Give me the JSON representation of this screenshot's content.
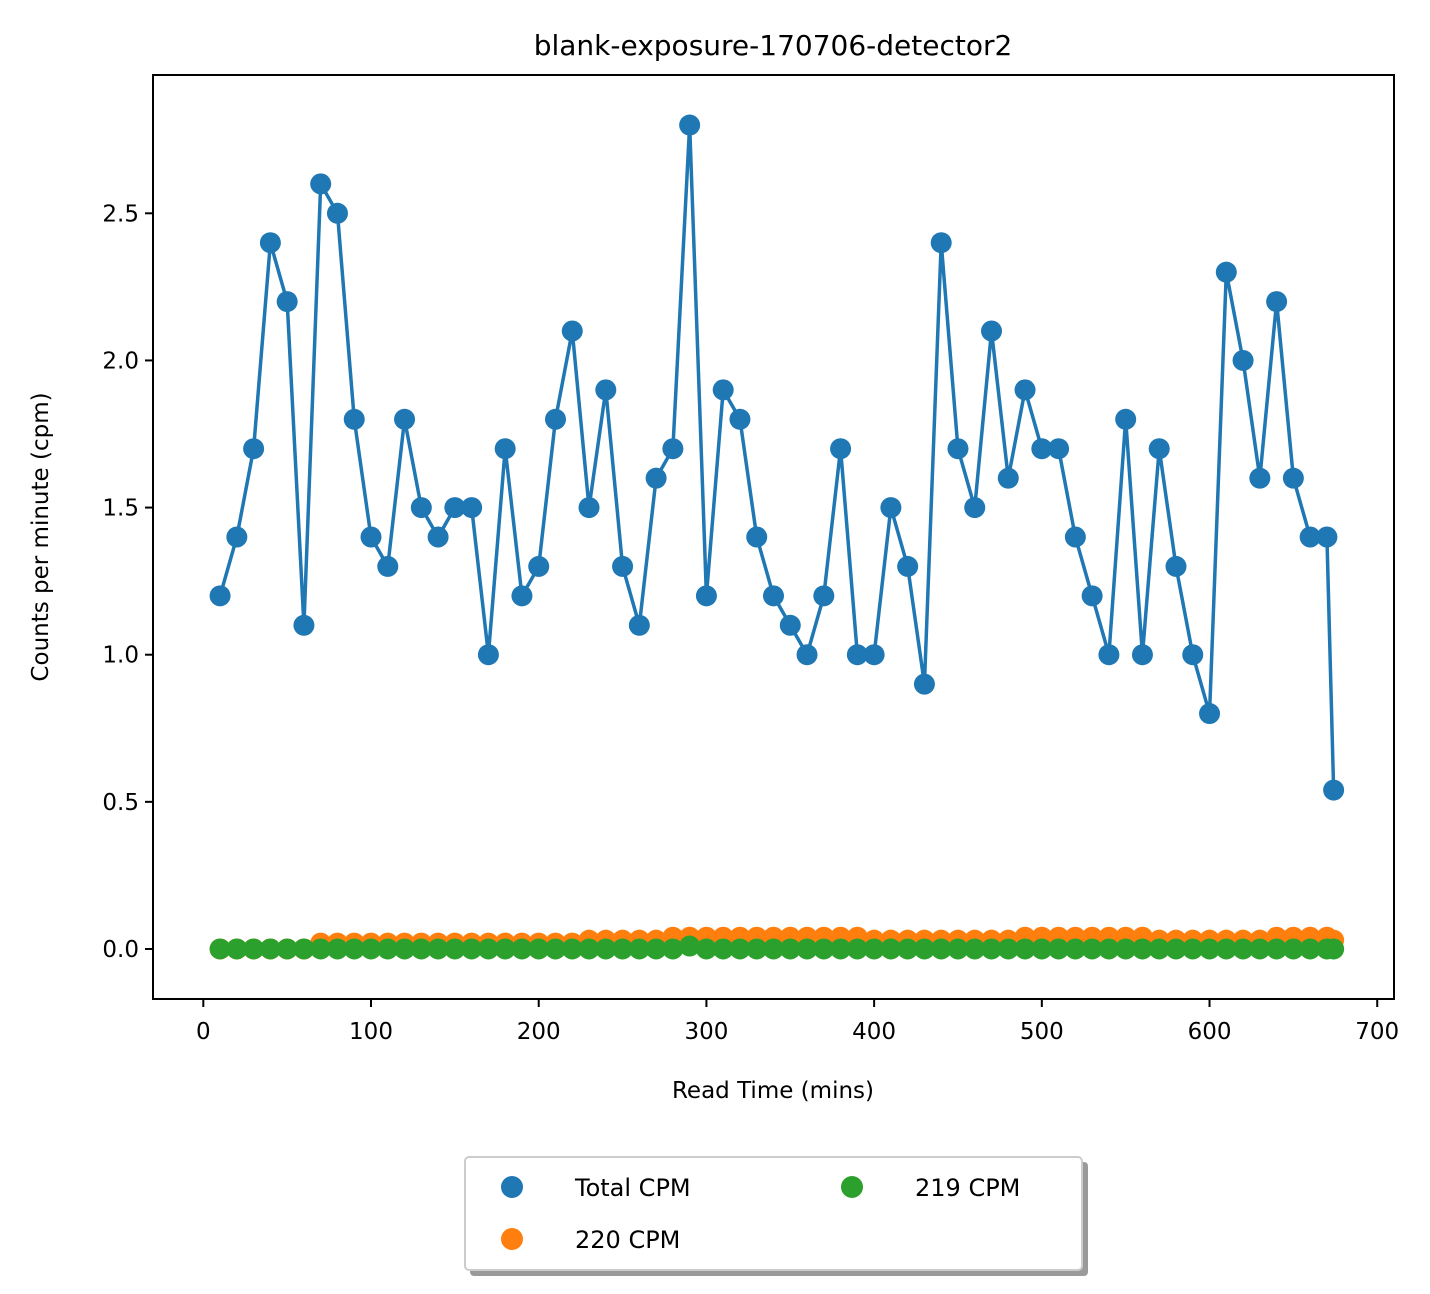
{
  "chart_data": {
    "type": "line",
    "title": "blank-exposure-170706-detector2",
    "xlabel": "Read Time (mins)",
    "ylabel": "Counts per minute (cpm)",
    "xlim": [
      -30,
      710
    ],
    "ylim": [
      -0.17,
      2.97
    ],
    "xticks": [
      0,
      100,
      200,
      300,
      400,
      500,
      600,
      700
    ],
    "yticks": [
      0.0,
      0.5,
      1.0,
      1.5,
      2.0,
      2.5
    ],
    "ytick_labels": [
      "0.0",
      "0.5",
      "1.0",
      "1.5",
      "2.0",
      "2.5"
    ],
    "grid": false,
    "legend_placement": "bottom-center (below plot)",
    "x": [
      10,
      20,
      30,
      40,
      50,
      60,
      70,
      80,
      90,
      100,
      110,
      120,
      130,
      140,
      150,
      160,
      170,
      180,
      190,
      200,
      210,
      220,
      230,
      240,
      250,
      260,
      270,
      280,
      290,
      300,
      310,
      320,
      330,
      340,
      350,
      360,
      370,
      380,
      390,
      400,
      410,
      420,
      430,
      440,
      450,
      460,
      470,
      480,
      490,
      500,
      510,
      520,
      530,
      540,
      550,
      560,
      570,
      580,
      590,
      600,
      610,
      620,
      630,
      640,
      650,
      660,
      670,
      674
    ],
    "series": [
      {
        "name": "Total CPM",
        "color": "#1f77b4",
        "values": [
          1.2,
          1.4,
          1.7,
          2.4,
          2.2,
          1.1,
          2.6,
          2.5,
          1.8,
          1.4,
          1.3,
          1.8,
          1.5,
          1.4,
          1.5,
          1.5,
          1.0,
          1.7,
          1.2,
          1.3,
          1.8,
          2.1,
          1.5,
          1.9,
          1.3,
          1.1,
          1.6,
          1.7,
          2.8,
          1.2,
          1.9,
          1.8,
          1.4,
          1.2,
          1.1,
          1.0,
          1.2,
          1.7,
          1.0,
          1.0,
          1.5,
          1.3,
          0.9,
          2.4,
          1.7,
          1.5,
          2.1,
          1.6,
          1.9,
          1.7,
          1.7,
          1.4,
          1.2,
          1.0,
          1.8,
          1.0,
          1.7,
          1.3,
          1.0,
          0.8,
          2.3,
          2.0,
          1.6,
          2.2,
          1.6,
          1.4,
          1.4,
          0.54
        ]
      },
      {
        "name": "220 CPM",
        "color": "#ff7f0e",
        "values": [
          0.0,
          0.0,
          0.0,
          0.0,
          0.0,
          0.0,
          0.02,
          0.02,
          0.02,
          0.02,
          0.02,
          0.02,
          0.02,
          0.02,
          0.02,
          0.02,
          0.02,
          0.02,
          0.02,
          0.02,
          0.02,
          0.02,
          0.03,
          0.03,
          0.03,
          0.03,
          0.03,
          0.04,
          0.04,
          0.04,
          0.04,
          0.04,
          0.04,
          0.04,
          0.04,
          0.04,
          0.04,
          0.04,
          0.04,
          0.03,
          0.03,
          0.03,
          0.03,
          0.03,
          0.03,
          0.03,
          0.03,
          0.03,
          0.04,
          0.04,
          0.04,
          0.04,
          0.04,
          0.04,
          0.04,
          0.04,
          0.03,
          0.03,
          0.03,
          0.03,
          0.03,
          0.03,
          0.03,
          0.04,
          0.04,
          0.04,
          0.04,
          0.03
        ]
      },
      {
        "name": "219 CPM",
        "color": "#2ca02c",
        "values": [
          0.0,
          0.0,
          0.0,
          0.0,
          0.0,
          0.0,
          0.0,
          0.0,
          0.0,
          0.0,
          0.0,
          0.0,
          0.0,
          0.0,
          0.0,
          0.0,
          0.0,
          0.0,
          0.0,
          0.0,
          0.0,
          0.0,
          0.0,
          0.0,
          0.0,
          0.0,
          0.0,
          0.0,
          0.01,
          0.0,
          0.0,
          0.0,
          0.0,
          0.0,
          0.0,
          0.0,
          0.0,
          0.0,
          0.0,
          0.0,
          0.0,
          0.0,
          0.0,
          0.0,
          0.0,
          0.0,
          0.0,
          0.0,
          0.0,
          0.0,
          0.0,
          0.0,
          0.0,
          0.0,
          0.0,
          0.0,
          0.0,
          0.0,
          0.0,
          0.0,
          0.0,
          0.0,
          0.0,
          0.0,
          0.0,
          0.0,
          0.0,
          0.0
        ]
      }
    ]
  }
}
